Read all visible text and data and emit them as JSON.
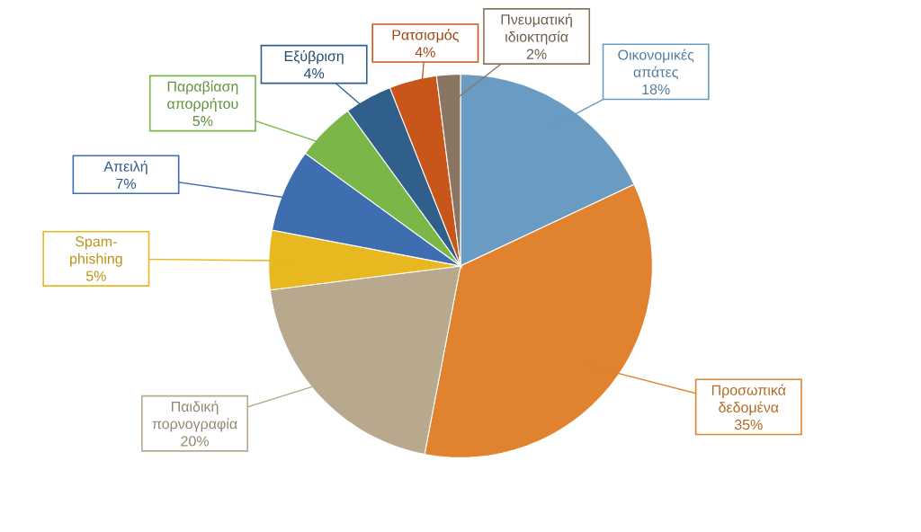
{
  "chart_data": {
    "type": "pie",
    "categories": [
      "Οικονομικές απάτες",
      "Προσωπικά δεδομένα",
      "Παιδική πορνογραφία",
      "Spam-phishing",
      "Απειλή",
      "Παραβίαση απορρήτου",
      "Εξύβριση",
      "Ρατσισμός",
      "Πνευματική ιδιοκτησία"
    ],
    "values": [
      18,
      35,
      20,
      5,
      7,
      5,
      4,
      4,
      2
    ],
    "value_labels": [
      "18%",
      "35%",
      "20%",
      "5%",
      "7%",
      "5%",
      "4%",
      "4%",
      "2%"
    ],
    "colors": [
      "#6a9bc3",
      "#e0822e",
      "#b8a88e",
      "#e8b820",
      "#3e6eb0",
      "#7ab648",
      "#2f5f8a",
      "#c8561a",
      "#8a7560"
    ]
  }
}
